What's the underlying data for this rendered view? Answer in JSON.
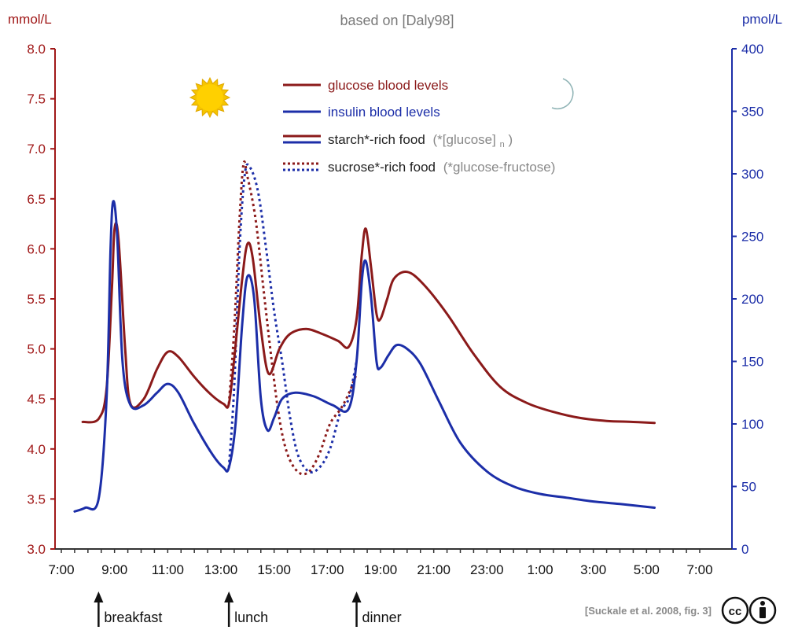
{
  "chart_data": {
    "type": "line",
    "title": "based on [Daly98]",
    "left_axis_unit": "mmol/L",
    "right_axis_unit": "pmol/L",
    "left_ylim": [
      3.0,
      8.0
    ],
    "right_ylim": [
      0,
      400
    ],
    "left_ticks": [
      "3.0",
      "3.5",
      "4.0",
      "4.5",
      "5.0",
      "5.5",
      "6.0",
      "6.5",
      "7.0",
      "7.5",
      "8.0"
    ],
    "right_ticks": [
      "0",
      "50",
      "100",
      "150",
      "200",
      "250",
      "300",
      "350",
      "400"
    ],
    "x_ticks": [
      "7:00",
      "9:00",
      "11:00",
      "13:00",
      "15:00",
      "17:00",
      "19:00",
      "21:00",
      "23:00",
      "1:00",
      "3:00",
      "5:00",
      "7:00"
    ],
    "x_unit": "hours from 7:00",
    "xlim": [
      0,
      24
    ],
    "grid": false,
    "legend": {
      "placement": "top-center",
      "entries": [
        {
          "label": "glucose blood levels",
          "color": "#8b1a1a"
        },
        {
          "label": "insulin blood levels",
          "color": "#1c2ea8"
        },
        {
          "label": "starch*-rich food",
          "note": "(*[glucose]",
          "sub": "n",
          "note_end": ")"
        },
        {
          "label": "sucrose*-rich food",
          "note": "(*glucose-fructose)"
        }
      ]
    },
    "series": [
      {
        "name": "glucose blood levels",
        "axis": "left",
        "style": "solid",
        "color": "#8b1a1a",
        "points": [
          [
            0.8,
            4.27
          ],
          [
            1.4,
            4.3
          ],
          [
            1.7,
            4.6
          ],
          [
            1.9,
            5.6
          ],
          [
            2.0,
            6.2
          ],
          [
            2.15,
            6.1
          ],
          [
            2.4,
            5.0
          ],
          [
            2.6,
            4.45
          ],
          [
            3.1,
            4.5
          ],
          [
            3.6,
            4.8
          ],
          [
            4.0,
            4.97
          ],
          [
            4.4,
            4.92
          ],
          [
            5.0,
            4.72
          ],
          [
            5.6,
            4.55
          ],
          [
            6.1,
            4.45
          ],
          [
            6.3,
            4.45
          ],
          [
            6.5,
            4.9
          ],
          [
            6.8,
            5.7
          ],
          [
            7.0,
            6.05
          ],
          [
            7.2,
            5.9
          ],
          [
            7.5,
            5.2
          ],
          [
            7.8,
            4.75
          ],
          [
            8.2,
            5.0
          ],
          [
            8.6,
            5.15
          ],
          [
            9.2,
            5.2
          ],
          [
            9.8,
            5.15
          ],
          [
            10.4,
            5.08
          ],
          [
            10.8,
            5.02
          ],
          [
            11.1,
            5.3
          ],
          [
            11.3,
            5.95
          ],
          [
            11.45,
            6.2
          ],
          [
            11.65,
            5.8
          ],
          [
            11.85,
            5.35
          ],
          [
            12.0,
            5.3
          ],
          [
            12.25,
            5.5
          ],
          [
            12.5,
            5.7
          ],
          [
            13.0,
            5.77
          ],
          [
            13.6,
            5.65
          ],
          [
            14.5,
            5.35
          ],
          [
            15.5,
            4.95
          ],
          [
            16.5,
            4.62
          ],
          [
            17.5,
            4.46
          ],
          [
            18.5,
            4.37
          ],
          [
            19.5,
            4.31
          ],
          [
            20.5,
            4.28
          ],
          [
            21.5,
            4.27
          ],
          [
            22.3,
            4.26
          ]
        ]
      },
      {
        "name": "insulin blood levels",
        "axis": "right",
        "style": "solid",
        "color": "#1c2ea8",
        "points": [
          [
            0.5,
            30
          ],
          [
            0.9,
            33
          ],
          [
            1.4,
            40
          ],
          [
            1.7,
            120
          ],
          [
            1.85,
            240
          ],
          [
            1.95,
            278
          ],
          [
            2.1,
            250
          ],
          [
            2.3,
            150
          ],
          [
            2.6,
            115
          ],
          [
            3.1,
            115
          ],
          [
            3.6,
            125
          ],
          [
            4.0,
            132
          ],
          [
            4.4,
            125
          ],
          [
            5.0,
            100
          ],
          [
            5.7,
            75
          ],
          [
            6.1,
            65
          ],
          [
            6.3,
            65
          ],
          [
            6.55,
            100
          ],
          [
            6.8,
            180
          ],
          [
            7.0,
            218
          ],
          [
            7.25,
            200
          ],
          [
            7.5,
            120
          ],
          [
            7.75,
            95
          ],
          [
            8.0,
            105
          ],
          [
            8.3,
            120
          ],
          [
            8.8,
            125
          ],
          [
            9.5,
            122
          ],
          [
            10.2,
            115
          ],
          [
            10.8,
            112
          ],
          [
            11.1,
            150
          ],
          [
            11.3,
            215
          ],
          [
            11.45,
            230
          ],
          [
            11.65,
            200
          ],
          [
            11.85,
            150
          ],
          [
            12.0,
            145
          ],
          [
            12.3,
            155
          ],
          [
            12.6,
            163
          ],
          [
            13.0,
            160
          ],
          [
            13.5,
            148
          ],
          [
            14.2,
            118
          ],
          [
            15.0,
            85
          ],
          [
            16.0,
            62
          ],
          [
            17.0,
            50
          ],
          [
            18.0,
            44
          ],
          [
            19.0,
            41
          ],
          [
            20.0,
            38
          ],
          [
            21.0,
            36
          ],
          [
            22.3,
            33
          ]
        ]
      },
      {
        "name": "glucose (sucrose-rich food)",
        "axis": "left",
        "style": "dotted",
        "color": "#8b1a1a",
        "points": [
          [
            6.3,
            4.45
          ],
          [
            6.5,
            5.2
          ],
          [
            6.7,
            6.3
          ],
          [
            6.85,
            6.85
          ],
          [
            7.0,
            6.72
          ],
          [
            7.3,
            6.3
          ],
          [
            7.6,
            5.6
          ],
          [
            7.9,
            4.9
          ],
          [
            8.2,
            4.3
          ],
          [
            8.5,
            3.95
          ],
          [
            8.9,
            3.77
          ],
          [
            9.3,
            3.77
          ],
          [
            9.7,
            3.95
          ],
          [
            10.1,
            4.25
          ],
          [
            10.5,
            4.4
          ],
          [
            10.8,
            4.55
          ],
          [
            11.1,
            4.75
          ]
        ]
      },
      {
        "name": "insulin (sucrose-rich food)",
        "axis": "right",
        "style": "dotted",
        "color": "#1c2ea8",
        "points": [
          [
            6.3,
            65
          ],
          [
            6.5,
            130
          ],
          [
            6.7,
            240
          ],
          [
            6.9,
            300
          ],
          [
            7.1,
            305
          ],
          [
            7.4,
            285
          ],
          [
            7.7,
            240
          ],
          [
            8.0,
            190
          ],
          [
            8.3,
            150
          ],
          [
            8.6,
            105
          ],
          [
            8.9,
            75
          ],
          [
            9.3,
            62
          ],
          [
            9.7,
            65
          ],
          [
            10.1,
            80
          ],
          [
            10.5,
            110
          ],
          [
            10.8,
            120
          ],
          [
            11.1,
            150
          ]
        ]
      }
    ],
    "annotations": [
      {
        "label": "breakfast",
        "x": 1.4
      },
      {
        "label": "lunch",
        "x": 6.3
      },
      {
        "label": "dinner",
        "x": 11.1
      }
    ],
    "credit": "[Suckale et al. 2008, fig. 3]"
  },
  "colors": {
    "glucose": "#8b1a1a",
    "insulin": "#1c2ea8",
    "left_axis_text": "#a01818",
    "right_axis_text": "#1c2ea8",
    "title_gray": "#7a7a7a"
  },
  "icons": [
    "sun-icon",
    "moon-icon",
    "cc-icon",
    "attribution-icon"
  ]
}
